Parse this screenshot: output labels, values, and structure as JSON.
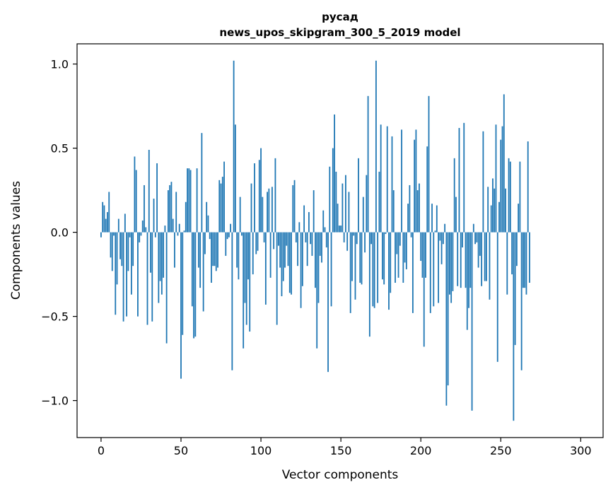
{
  "chart_data": {
    "type": "bar",
    "title": "русад",
    "subtitle": "news_upos_skipgram_300_5_2019 model",
    "xlabel": "Vector components",
    "ylabel": "Components values",
    "xlim": [
      -15,
      314
    ],
    "ylim": [
      -1.22,
      1.12
    ],
    "xticks": [
      0,
      50,
      100,
      150,
      200,
      250,
      300
    ],
    "xtick_labels": [
      "0",
      "50",
      "100",
      "150",
      "200",
      "250",
      "300"
    ],
    "yticks": [
      -1.0,
      -0.5,
      0.0,
      0.5,
      1.0
    ],
    "ytick_labels": [
      "−1.0",
      "−0.5",
      "0.0",
      "0.5",
      "1.0"
    ],
    "grid": false,
    "legend": "none",
    "bar_color": "#1f77b4",
    "series": [
      {
        "values": [
          -0.03,
          0.18,
          0.16,
          0.08,
          0.12,
          0.24,
          -0.15,
          -0.23,
          -0.02,
          -0.49,
          -0.31,
          0.08,
          -0.16,
          -0.2,
          -0.53,
          0.11,
          -0.5,
          -0.23,
          -0.03,
          -0.37,
          -0.2,
          0.45,
          0.37,
          -0.5,
          -0.06,
          -0.02,
          0.07,
          0.28,
          0.03,
          -0.55,
          0.49,
          -0.24,
          -0.53,
          0.2,
          -0.03,
          0.41,
          -0.42,
          -0.29,
          -0.37,
          -0.27,
          0.04,
          -0.66,
          0.25,
          0.28,
          0.3,
          0.08,
          -0.21,
          0.24,
          -0.02,
          0.05,
          -0.87,
          -0.61,
          0.01,
          0.18,
          0.38,
          0.38,
          0.37,
          -0.44,
          -0.63,
          -0.62,
          0.38,
          -0.21,
          -0.33,
          0.59,
          -0.47,
          -0.13,
          0.18,
          0.1,
          -0.04,
          -0.3,
          -0.2,
          -0.2,
          -0.23,
          -0.21,
          0.31,
          0.29,
          0.33,
          0.42,
          -0.14,
          -0.04,
          -0.03,
          0.05,
          -0.82,
          1.02,
          0.64,
          -0.21,
          -0.28,
          0.21,
          -0.02,
          -0.69,
          -0.42,
          -0.55,
          -0.28,
          -0.59,
          0.29,
          -0.25,
          0.41,
          -0.13,
          -0.11,
          0.43,
          0.5,
          0.21,
          -0.06,
          -0.43,
          0.24,
          0.26,
          -0.27,
          0.27,
          -0.1,
          0.44,
          -0.55,
          -0.08,
          -0.21,
          -0.38,
          -0.29,
          -0.21,
          -0.08,
          -0.2,
          -0.36,
          -0.37,
          0.28,
          0.31,
          -0.06,
          -0.2,
          0.06,
          -0.45,
          -0.32,
          0.16,
          -0.06,
          -0.2,
          0.12,
          -0.07,
          -0.14,
          0.25,
          -0.33,
          -0.69,
          -0.42,
          -0.14,
          -0.18,
          0.13,
          0.03,
          -0.09,
          -0.83,
          0.39,
          -0.44,
          0.5,
          0.7,
          0.36,
          0.17,
          0.04,
          0.04,
          0.29,
          -0.06,
          0.34,
          -0.11,
          0.24,
          -0.48,
          -0.29,
          -0.02,
          -0.4,
          -0.07,
          0.44,
          -0.3,
          -0.31,
          0.21,
          -0.12,
          0.34,
          0.81,
          -0.62,
          -0.07,
          -0.44,
          -0.45,
          1.02,
          -0.42,
          0.36,
          0.64,
          -0.28,
          -0.31,
          -0.01,
          0.63,
          -0.46,
          -0.36,
          0.57,
          0.25,
          -0.3,
          -0.13,
          -0.27,
          -0.08,
          0.61,
          -0.3,
          -0.18,
          -0.22,
          0.17,
          0.28,
          -0.03,
          -0.48,
          0.55,
          0.61,
          0.25,
          0.29,
          -0.17,
          -0.27,
          -0.68,
          -0.27,
          0.51,
          0.81,
          -0.48,
          0.17,
          -0.44,
          0.01,
          0.16,
          -0.42,
          -0.05,
          -0.19,
          -0.07,
          0.05,
          -1.03,
          -0.91,
          -0.37,
          -0.42,
          -0.35,
          0.44,
          0.21,
          -0.32,
          0.62,
          -0.33,
          -0.09,
          0.65,
          -0.33,
          -0.58,
          -0.45,
          -0.33,
          -1.06,
          0.05,
          -0.07,
          -0.06,
          -0.21,
          -0.14,
          -0.32,
          0.6,
          -0.29,
          -0.29,
          0.27,
          -0.4,
          0.16,
          0.32,
          0.26,
          0.64,
          -0.77,
          0.18,
          0.55,
          0.63,
          0.82,
          0.26,
          -0.37,
          0.44,
          0.42,
          -0.25,
          -1.12,
          -0.67,
          -0.2,
          0.17,
          0.42,
          -0.82,
          -0.33,
          -0.33,
          -0.37,
          0.54,
          -0.3
        ]
      }
    ]
  }
}
